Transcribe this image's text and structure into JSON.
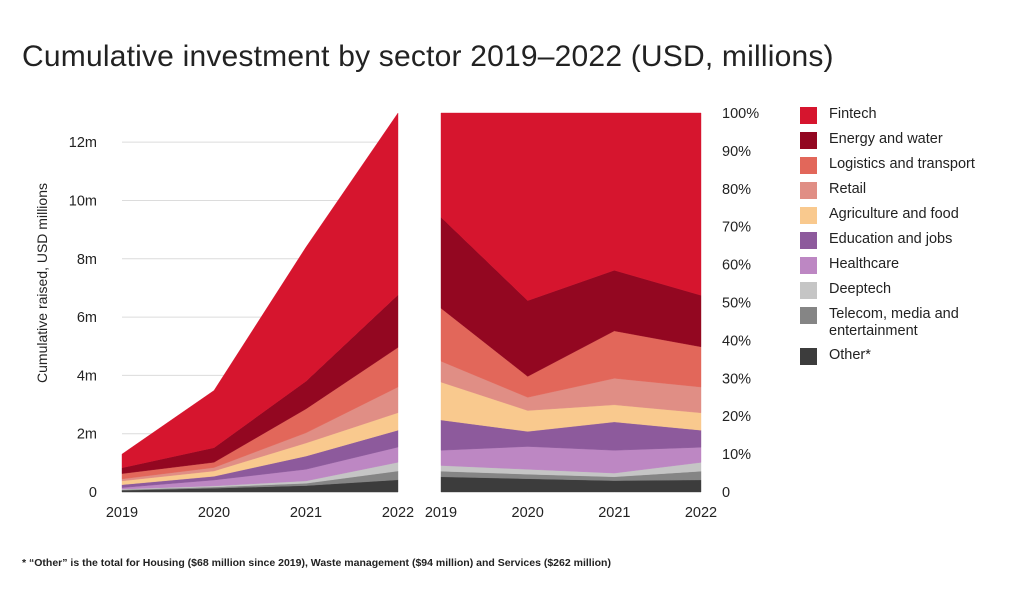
{
  "chart_data": [
    {
      "type": "area",
      "stacked": true,
      "title": "Cumulative investment by sector 2019–2022 (USD, millions)",
      "ylabel": "Cumulative raised, USD millions",
      "x": [
        "2019",
        "2020",
        "2021",
        "2022"
      ],
      "ylim": [
        0,
        13
      ],
      "yticks": [
        "0",
        "2m",
        "4m",
        "6m",
        "8m",
        "10m",
        "12m"
      ],
      "grid": true,
      "series": [
        {
          "name": "Other*",
          "values": [
            0.06,
            0.13,
            0.22,
            0.42
          ]
        },
        {
          "name": "Telecom, media and entertainment",
          "values": [
            0.02,
            0.04,
            0.08,
            0.3
          ]
        },
        {
          "name": "Deeptech",
          "values": [
            0.02,
            0.04,
            0.08,
            0.3
          ]
        },
        {
          "name": "Healthcare",
          "values": [
            0.05,
            0.2,
            0.4,
            0.52
          ]
        },
        {
          "name": "Education and jobs",
          "values": [
            0.1,
            0.13,
            0.45,
            0.58
          ]
        },
        {
          "name": "Agriculture and food",
          "values": [
            0.13,
            0.18,
            0.45,
            0.6
          ]
        },
        {
          "name": "Retail",
          "values": [
            0.07,
            0.12,
            0.35,
            0.88
          ]
        },
        {
          "name": "Logistics and transport",
          "values": [
            0.18,
            0.18,
            0.82,
            1.36
          ]
        },
        {
          "name": "Energy and water",
          "values": [
            0.2,
            0.5,
            0.95,
            1.8
          ]
        },
        {
          "name": "Fintech",
          "values": [
            0.47,
            1.96,
            4.6,
            6.24
          ]
        }
      ]
    },
    {
      "type": "area",
      "stacked": true,
      "normalized": true,
      "x": [
        "2019",
        "2020",
        "2021",
        "2022"
      ],
      "ylim": [
        0,
        100
      ],
      "yticks": [
        "0",
        "10%",
        "20%",
        "30%",
        "40%",
        "50%",
        "60%",
        "70%",
        "80%",
        "90%",
        "100%"
      ],
      "series": [
        {
          "name": "Other*",
          "values": [
            4,
            3.5,
            3,
            3.2
          ]
        },
        {
          "name": "Telecom, media and entertainment",
          "values": [
            1.5,
            1.2,
            1,
            2.3
          ]
        },
        {
          "name": "Deeptech",
          "values": [
            1.5,
            1.3,
            1,
            2.3
          ]
        },
        {
          "name": "Healthcare",
          "values": [
            4,
            6,
            6,
            4
          ]
        },
        {
          "name": "Education and jobs",
          "values": [
            8,
            4,
            7.5,
            4.5
          ]
        },
        {
          "name": "Agriculture and food",
          "values": [
            10,
            5.5,
            4.5,
            4.6
          ]
        },
        {
          "name": "Retail",
          "values": [
            5.5,
            3.5,
            7,
            6.8
          ]
        },
        {
          "name": "Logistics and transport",
          "values": [
            14,
            5.5,
            12.5,
            10.6
          ]
        },
        {
          "name": "Energy and water",
          "values": [
            24,
            20,
            16,
            13.6
          ]
        },
        {
          "name": "Fintech",
          "values": [
            27.5,
            49.5,
            41.5,
            48.1
          ]
        }
      ]
    }
  ],
  "colors": {
    "Fintech": "#d6152e",
    "Energy and water": "#930721",
    "Logistics and transport": "#e2675a",
    "Retail": "#e08e85",
    "Agriculture and food": "#f9c98e",
    "Education and jobs": "#8d5a9c",
    "Healthcare": "#bd87c3",
    "Deeptech": "#c5c5c5",
    "Telecom, media and entertainment": "#858585",
    "Other*": "#3c3c3c"
  },
  "legend": [
    {
      "label": "Fintech",
      "color": "#d6152e"
    },
    {
      "label": "Energy and water",
      "color": "#930721"
    },
    {
      "label": "Logistics and transport",
      "color": "#e2675a"
    },
    {
      "label": "Retail",
      "color": "#e08e85"
    },
    {
      "label": "Agriculture and food",
      "color": "#f9c98e"
    },
    {
      "label": "Education and jobs",
      "color": "#8d5a9c"
    },
    {
      "label": "Healthcare",
      "color": "#bd87c3"
    },
    {
      "label": "Deeptech",
      "color": "#c5c5c5"
    },
    {
      "label": "Telecom, media and\nentertainment",
      "color": "#858585"
    },
    {
      "label": "Other*",
      "color": "#3c3c3c"
    }
  ],
  "footnote": "* “Other” is the total for Housing ($68 million since 2019), Waste management ($94 million) and Services ($262 million)"
}
